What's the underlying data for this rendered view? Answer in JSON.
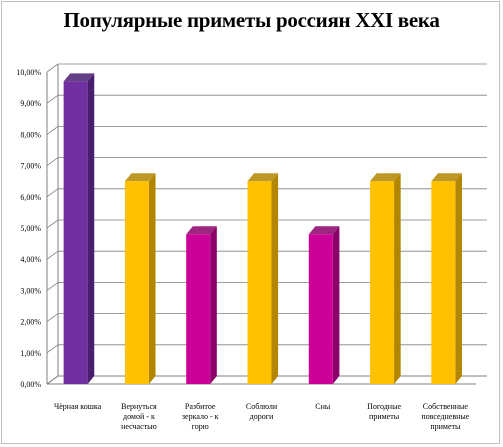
{
  "chart_data": {
    "type": "bar",
    "title": "Популярные приметы россиян XXI века",
    "xlabel": "",
    "ylabel": "",
    "ylim": [
      0,
      10
    ],
    "yticks": [
      "0,00%",
      "1,00%",
      "2,00%",
      "3,00%",
      "4,00%",
      "5,00%",
      "6,00%",
      "7,00%",
      "8,00%",
      "9,00%",
      "10,00%"
    ],
    "grid": true,
    "legend": "none",
    "categories": [
      [
        "Чёрная кошка"
      ],
      [
        "Вернуться",
        "домой - к",
        "несчастью"
      ],
      [
        "Разбитое",
        "зеркало - к",
        "горю"
      ],
      [
        "Соблюли",
        "дороги"
      ],
      [
        "Сны"
      ],
      [
        "Погодные",
        "приметы"
      ],
      [
        "Собственные",
        "повседневные",
        "приметы"
      ]
    ],
    "values": [
      9.7,
      6.5,
      4.8,
      6.5,
      4.8,
      6.5,
      6.5
    ],
    "colors": [
      "#7030a0",
      "#ffc000",
      "#cc0099",
      "#ffc000",
      "#cc0099",
      "#ffc000",
      "#ffc000"
    ],
    "side_colors": [
      "#4a1d6e",
      "#b38600",
      "#8c006a",
      "#b38600",
      "#8c006a",
      "#b38600",
      "#b38600"
    ]
  }
}
